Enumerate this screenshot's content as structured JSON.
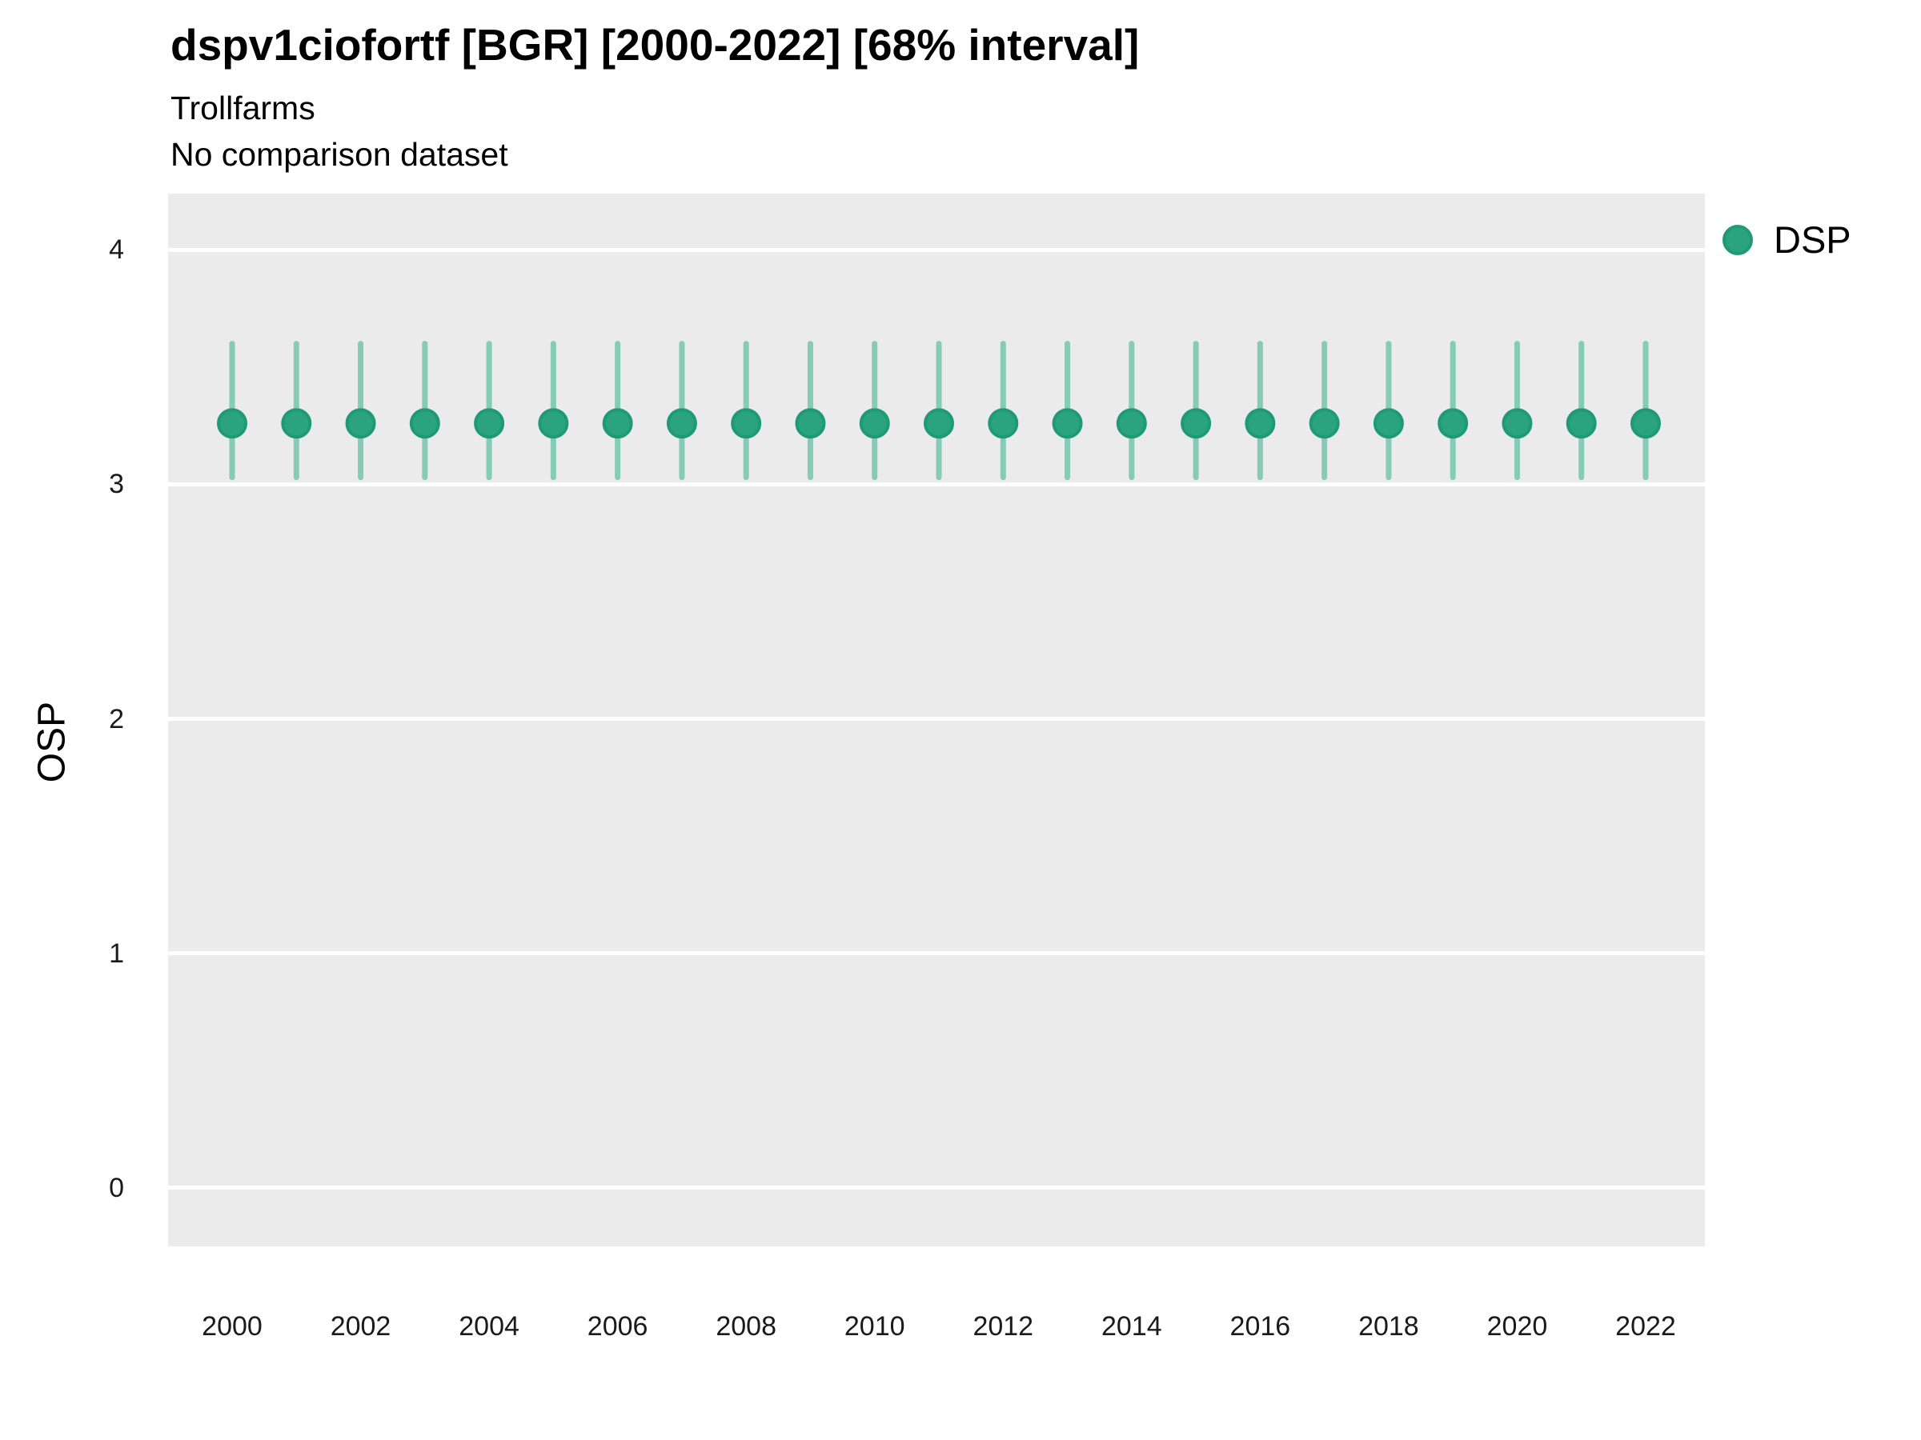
{
  "header": {
    "title": "dspv1ciofortf [BGR] [2000-2022] [68% interval]",
    "subtitle": "Trollfarms",
    "note": "No comparison dataset"
  },
  "legend": {
    "items": [
      {
        "label": "DSP",
        "color": "#2ba47e"
      }
    ]
  },
  "colors": {
    "point_fill": "#2ba47e",
    "point_stroke": "#1e9b74",
    "interval_line": "#86cbb3",
    "panel_bg": "#ebebeb",
    "gridline": "#ffffff",
    "text": "#000000",
    "axis_text": "#1a1a1a"
  },
  "chart_data": {
    "type": "pointrange",
    "title": "dspv1ciofortf [BGR] [2000-2022] [68% interval]",
    "subtitle": "Trollfarms",
    "note": "No comparison dataset",
    "xlabel": "",
    "ylabel": "OSP",
    "x": [
      2000,
      2001,
      2002,
      2003,
      2004,
      2005,
      2006,
      2007,
      2008,
      2009,
      2010,
      2011,
      2012,
      2013,
      2014,
      2015,
      2016,
      2017,
      2018,
      2019,
      2020,
      2021,
      2022
    ],
    "series": [
      {
        "name": "DSP",
        "interval": "68%",
        "values": [
          3.26,
          3.26,
          3.26,
          3.26,
          3.26,
          3.26,
          3.26,
          3.26,
          3.26,
          3.26,
          3.26,
          3.26,
          3.26,
          3.26,
          3.26,
          3.26,
          3.26,
          3.26,
          3.26,
          3.26,
          3.26,
          3.26,
          3.26
        ],
        "lower": [
          3.03,
          3.03,
          3.03,
          3.03,
          3.03,
          3.03,
          3.03,
          3.03,
          3.03,
          3.03,
          3.03,
          3.03,
          3.03,
          3.03,
          3.03,
          3.03,
          3.03,
          3.03,
          3.03,
          3.03,
          3.03,
          3.03,
          3.03
        ],
        "upper": [
          3.6,
          3.6,
          3.6,
          3.6,
          3.6,
          3.6,
          3.6,
          3.6,
          3.6,
          3.6,
          3.6,
          3.6,
          3.6,
          3.6,
          3.6,
          3.6,
          3.6,
          3.6,
          3.6,
          3.6,
          3.6,
          3.6,
          3.6
        ]
      }
    ],
    "ylim": [
      -0.25,
      4.24
    ],
    "yticks": [
      0,
      1,
      2,
      3,
      4
    ],
    "xtick_labels": [
      2000,
      2002,
      2004,
      2006,
      2008,
      2010,
      2012,
      2014,
      2016,
      2018,
      2020,
      2022
    ],
    "legend_position": "right",
    "grid": "horizontal white major gridlines on gray panel, no vertical gridlines, no minor gridlines"
  }
}
